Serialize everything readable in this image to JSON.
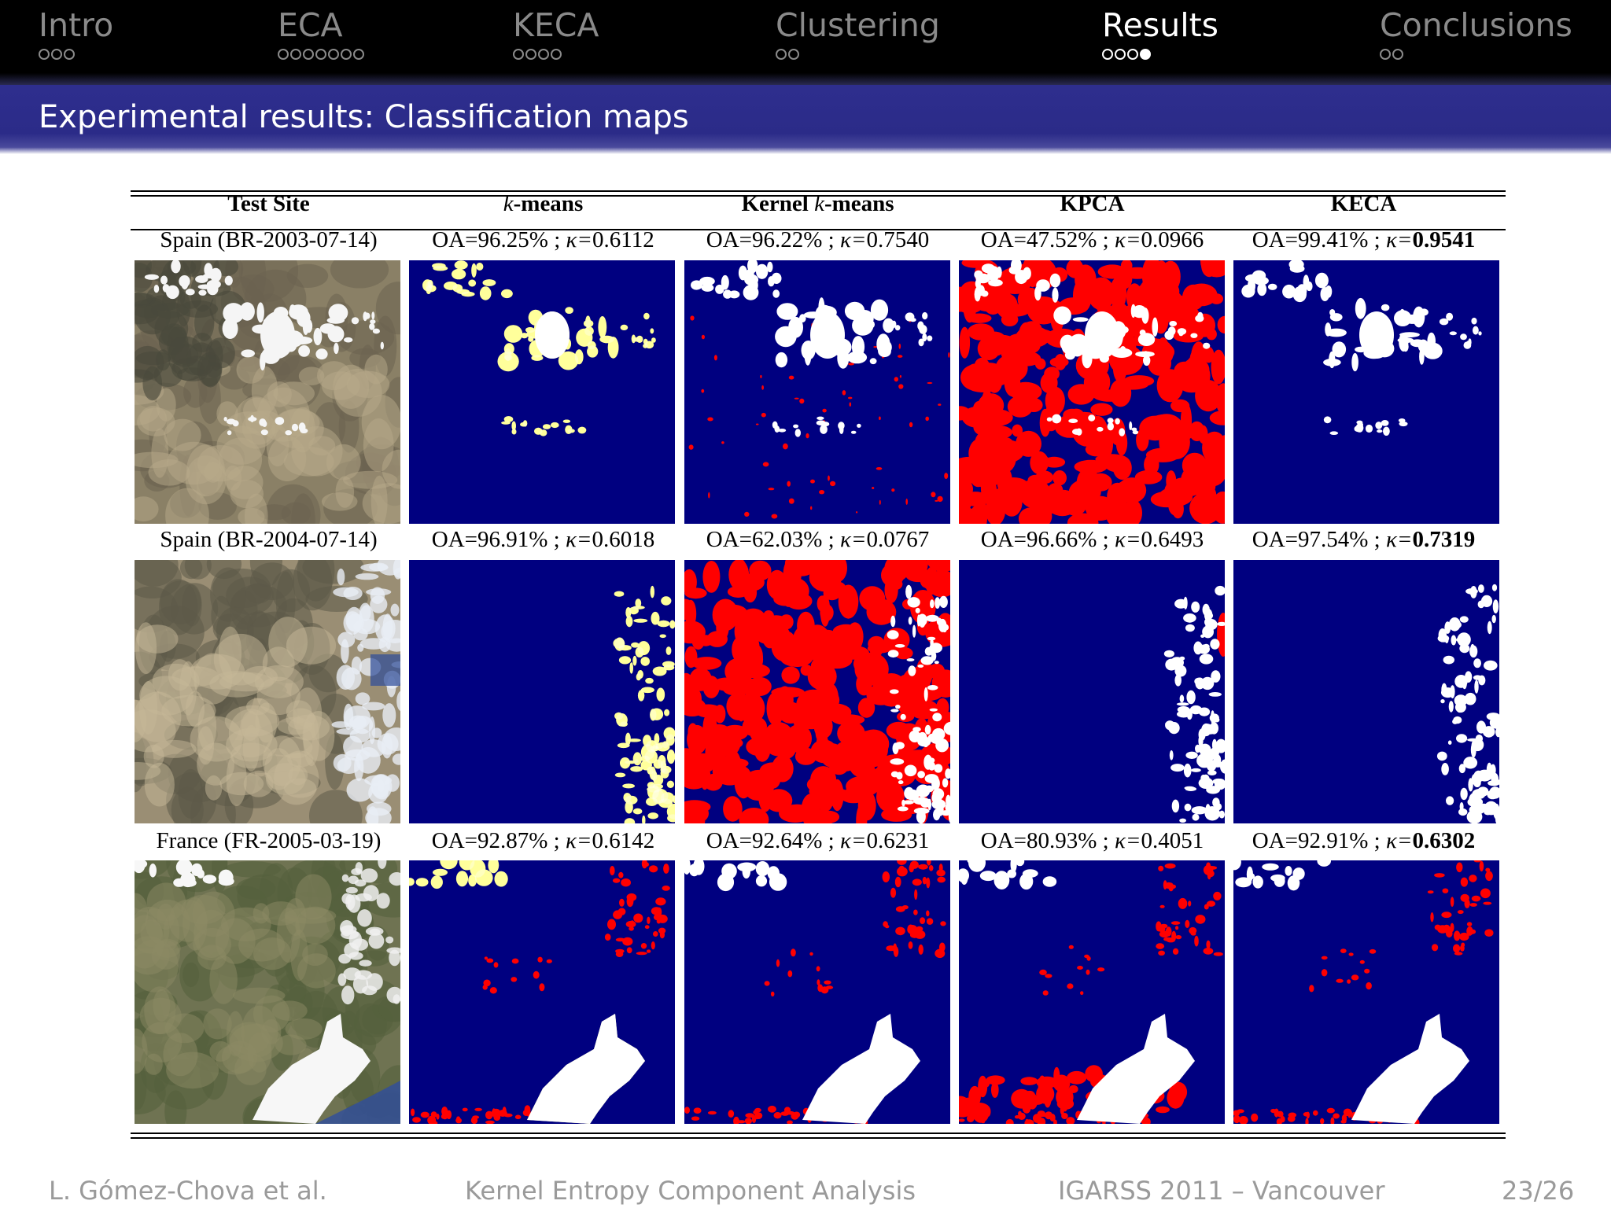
{
  "nav": {
    "sections": [
      {
        "label": "Intro",
        "dots": 3,
        "filled": 0,
        "active": false
      },
      {
        "label": "ECA",
        "dots": 7,
        "filled": 0,
        "active": false
      },
      {
        "label": "KECA",
        "dots": 4,
        "filled": 0,
        "active": false
      },
      {
        "label": "Clustering",
        "dots": 2,
        "filled": 0,
        "active": false
      },
      {
        "label": "Results",
        "dots": 4,
        "filled": 4,
        "active": true
      },
      {
        "label": "Conclusions",
        "dots": 2,
        "filled": 0,
        "active": false
      }
    ]
  },
  "frame": {
    "title": "Experimental results: Classification maps"
  },
  "table": {
    "headers": [
      "Test Site",
      "k",
      "-means",
      "Kernel ",
      "k",
      "-means",
      "KPCA",
      "KECA"
    ],
    "rows": [
      {
        "site": "Spain (BR-2003-07-14)",
        "results": [
          {
            "oa": "OA=96.25%",
            "kappa": "0.6112",
            "bold": false
          },
          {
            "oa": "OA=96.22%",
            "kappa": "0.7540",
            "bold": false
          },
          {
            "oa": "OA=47.52%",
            "kappa": "0.0966",
            "bold": false
          },
          {
            "oa": "OA=99.41%",
            "kappa": "0.9541",
            "bold": true
          }
        ]
      },
      {
        "site": "Spain (BR-2004-07-14)",
        "results": [
          {
            "oa": "OA=96.91%",
            "kappa": "0.6018",
            "bold": false
          },
          {
            "oa": "OA=62.03%",
            "kappa": "0.0767",
            "bold": false
          },
          {
            "oa": "OA=96.66%",
            "kappa": "0.6493",
            "bold": false
          },
          {
            "oa": "OA=97.54%",
            "kappa": "0.7319",
            "bold": true
          }
        ]
      },
      {
        "site": "France (FR-2005-03-19)",
        "results": [
          {
            "oa": "OA=92.87%",
            "kappa": "0.6142",
            "bold": false
          },
          {
            "oa": "OA=92.64%",
            "kappa": "0.6231",
            "bold": false
          },
          {
            "oa": "OA=80.93%",
            "kappa": "0.4051",
            "bold": false
          },
          {
            "oa": "OA=92.91%",
            "kappa": "0.6302",
            "bold": true
          }
        ]
      }
    ],
    "sep": " ; ",
    "kappa_symbol": "κ="
  },
  "colors": {
    "background_class": "#000080",
    "cloud_class": "#ffffff",
    "error_red": "#ff0000",
    "error_yellow": "#ffff66",
    "nav_bg": "#000000",
    "title_bg": "#2b2b88"
  },
  "footer": {
    "author": "L. Gómez-Chova et al.",
    "talk": "Kernel Entropy Component Analysis",
    "venue": "IGARSS 2011 – Vancouver",
    "page": "23/26"
  }
}
